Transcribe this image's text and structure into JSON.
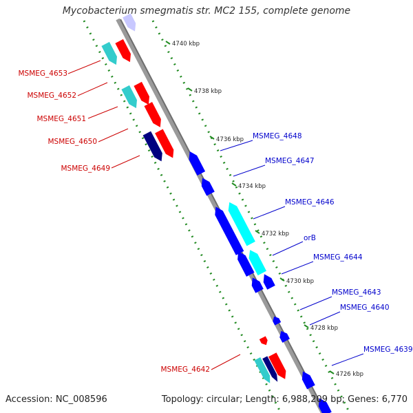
{
  "title": "Mycobacterium smegmatis str. MC2 155, complete genome",
  "accession_text": "Accession: NC_008596",
  "topology_text": "Topology: circular; Length: 6,988,209 bp; Genes: 6,770",
  "colors": {
    "backbone": "#7f7f7f",
    "ruler": "#228b22",
    "forward_gene": "#ff0000",
    "reverse_gene": "#0000ff",
    "forward_cds": "#33cccc",
    "reverse_cds": "#00ffff",
    "reverse_dark": "#000080",
    "faded": "#c8c8ff",
    "forward_label": "#cc0000",
    "reverse_label": "#0000cc"
  },
  "ruler_ticks": [
    "4740 kbp",
    "4738 kbp",
    "4736 kbp",
    "4734 kbp",
    "4732 kbp",
    "4730 kbp",
    "4728 kbp",
    "4726 kbp"
  ],
  "forward_labels": [
    "MSMEG_4653",
    "MSMEG_4652",
    "MSMEG_4651",
    "MSMEG_4650",
    "MSMEG_4649",
    "MSMEG_4642"
  ],
  "reverse_labels": [
    "MSMEG_4648",
    "MSMEG_4647",
    "MSMEG_4646",
    "orB",
    "MSMEG_4644",
    "MSMEG_4643",
    "MSMEG_4640",
    "MSMEG_4639"
  ]
}
